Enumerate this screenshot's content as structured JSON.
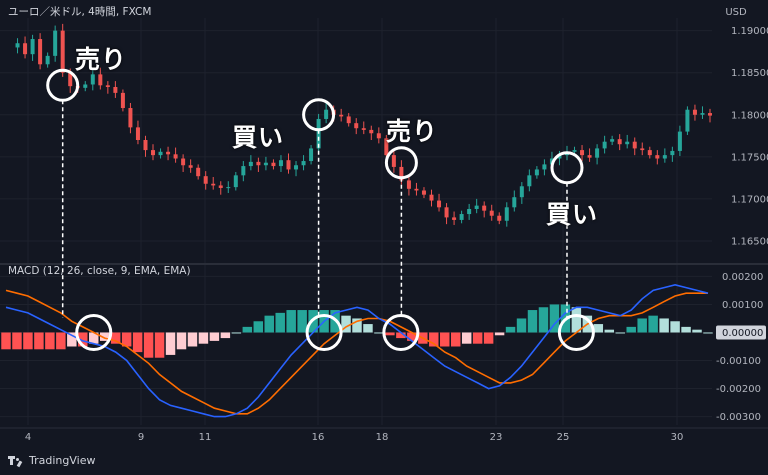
{
  "header": {
    "title": "ユーロ／米ドル, 4時間, FXCM",
    "currency": "USD"
  },
  "branding": {
    "name": "TradingView"
  },
  "annotations": {
    "sell_1": "売り",
    "buy_1": "買い",
    "sell_2": "売り",
    "buy_2": "買い"
  },
  "colors": {
    "background": "#131722",
    "grid": "#1e222d",
    "bullish": "#26a69a",
    "bearish": "#ef5350",
    "hist_pos_strong": "#26a69a",
    "hist_pos_weak": "#b2dfdb",
    "hist_neg_strong": "#ff5252",
    "hist_neg_weak": "#ffcdd2",
    "macd_line": "#2962ff",
    "signal_line": "#ff6d00",
    "annotation": "#ffffff",
    "axis_text": "#b2b5be"
  },
  "chart_data": [
    {
      "type": "candlestick",
      "title": "ユーロ／米ドル, 4時間, FXCM",
      "y_axis_unit": "USD",
      "x_ticks": [
        "4",
        "9",
        "11",
        "16",
        "18",
        "23",
        "25",
        "30"
      ],
      "y_ticks": [
        "1.19000",
        "1.18500",
        "1.18000",
        "1.17500",
        "1.17000",
        "1.16500"
      ],
      "ylim": [
        1.1625,
        1.1915
      ],
      "close_path": [
        1.188,
        1.1885,
        1.1872,
        1.189,
        1.186,
        1.187,
        1.19,
        1.185,
        1.1834,
        1.1832,
        1.1836,
        1.1848,
        1.1835,
        1.1833,
        1.1826,
        1.1808,
        1.1785,
        1.177,
        1.1758,
        1.1752,
        1.1756,
        1.1753,
        1.1748,
        1.174,
        1.1737,
        1.1727,
        1.1718,
        1.1716,
        1.1713,
        1.1714,
        1.1728,
        1.1739,
        1.1744,
        1.174,
        1.1743,
        1.1739,
        1.1746,
        1.1735,
        1.174,
        1.1745,
        1.176,
        1.1795,
        1.1806,
        1.18,
        1.1798,
        1.179,
        1.1784,
        1.1782,
        1.1778,
        1.1772,
        1.1752,
        1.1738,
        1.1722,
        1.1712,
        1.171,
        1.1705,
        1.1698,
        1.169,
        1.1678,
        1.1675,
        1.1682,
        1.1688,
        1.1692,
        1.1686,
        1.168,
        1.1674,
        1.169,
        1.1702,
        1.1715,
        1.1728,
        1.1735,
        1.1741,
        1.1748,
        1.1752,
        1.1756,
        1.1758,
        1.1752,
        1.1749,
        1.176,
        1.1768,
        1.1771,
        1.1765,
        1.1768,
        1.176,
        1.1758,
        1.1752,
        1.1748,
        1.1752,
        1.1757,
        1.178,
        1.1806,
        1.18,
        1.1802,
        1.1799
      ],
      "annotations": [
        {
          "label": "売り",
          "at_index": 7,
          "price": 1.1835
        },
        {
          "label": "買い",
          "at_index": 41,
          "price": 1.18
        },
        {
          "label": "売り",
          "at_index": 52,
          "price": 1.1743
        },
        {
          "label": "買い",
          "at_index": 74,
          "price": 1.1737
        }
      ]
    },
    {
      "type": "line+histogram",
      "title": "MACD (12, 26, close, 9, EMA, EMA)",
      "y_ticks": [
        "0.00200",
        "0.00100",
        "0.00000",
        "-0.00100",
        "-0.00200",
        "-0.00300"
      ],
      "ylim": [
        -0.0033,
        0.0023
      ],
      "current_value_label": "0.00000",
      "series": [
        {
          "name": "MACD",
          "values": [
            0.0009,
            0.0008,
            0.0007,
            0.0005,
            0.0003,
            0.0001,
            -0.0001,
            -0.0003,
            -0.0004,
            -0.0005,
            -0.0007,
            -0.001,
            -0.0015,
            -0.002,
            -0.0024,
            -0.0026,
            -0.0027,
            -0.0028,
            -0.0029,
            -0.003,
            -0.003,
            -0.0029,
            -0.0027,
            -0.0023,
            -0.0018,
            -0.0013,
            -0.0008,
            -0.0004,
            0.0,
            0.0004,
            0.0007,
            0.0008,
            0.0009,
            0.0008,
            0.0005,
            0.0003,
            0.0,
            -0.0003,
            -0.0006,
            -0.0009,
            -0.0012,
            -0.0014,
            -0.0016,
            -0.0018,
            -0.002,
            -0.0019,
            -0.0016,
            -0.0012,
            -0.0007,
            -0.0002,
            0.0003,
            0.0007,
            0.0009,
            0.0009,
            0.0008,
            0.0007,
            0.0006,
            0.0008,
            0.0012,
            0.0015,
            0.0016,
            0.0017,
            0.0016,
            0.0015,
            0.0014
          ]
        },
        {
          "name": "Signal",
          "values": [
            0.0015,
            0.0014,
            0.0013,
            0.0011,
            0.0009,
            0.0007,
            0.0004,
            0.0002,
            0.0,
            -0.0002,
            -0.0003,
            -0.0005,
            -0.0008,
            -0.0011,
            -0.0015,
            -0.0018,
            -0.0021,
            -0.0023,
            -0.0025,
            -0.0027,
            -0.0028,
            -0.0029,
            -0.0029,
            -0.0027,
            -0.0024,
            -0.002,
            -0.0016,
            -0.0012,
            -0.0008,
            -0.0004,
            -0.0001,
            0.0002,
            0.0004,
            0.0005,
            0.0005,
            0.0004,
            0.0002,
            0.0,
            -0.0002,
            -0.0004,
            -0.0007,
            -0.0009,
            -0.0012,
            -0.0014,
            -0.0016,
            -0.0018,
            -0.0018,
            -0.0017,
            -0.0015,
            -0.0011,
            -0.0007,
            -0.0003,
            0.0,
            0.0003,
            0.0005,
            0.0006,
            0.0006,
            0.0006,
            0.0007,
            0.0009,
            0.0011,
            0.0013,
            0.0014,
            0.0014,
            0.0014
          ]
        },
        {
          "name": "Histogram",
          "values": [
            -0.0006,
            -0.0006,
            -0.0006,
            -0.0006,
            -0.0006,
            -0.0006,
            -0.0005,
            -0.0005,
            -0.0004,
            -0.0003,
            -0.0004,
            -0.0005,
            -0.0007,
            -0.0009,
            -0.0009,
            -0.0008,
            -0.0006,
            -0.0005,
            -0.0004,
            -0.0003,
            -0.0002,
            0.0,
            0.0002,
            0.0004,
            0.0006,
            0.0007,
            0.0008,
            0.0008,
            0.0008,
            0.0008,
            0.0008,
            0.0006,
            0.0005,
            0.0003,
            0.0,
            -0.0001,
            -0.0002,
            -0.0003,
            -0.0004,
            -0.0005,
            -0.0005,
            -0.0005,
            -0.0004,
            -0.0004,
            -0.0004,
            -0.0001,
            0.0002,
            0.0005,
            0.0008,
            0.0009,
            0.001,
            0.001,
            0.0009,
            0.0006,
            0.0003,
            0.0001,
            0.0,
            0.0002,
            0.0005,
            0.0006,
            0.0005,
            0.0004,
            0.0002,
            0.0001,
            0.0
          ]
        }
      ],
      "crossovers": [
        {
          "direction": "down",
          "at_index": 8
        },
        {
          "direction": "up",
          "at_index": 29
        },
        {
          "direction": "down",
          "at_index": 36
        },
        {
          "direction": "up",
          "at_index": 52
        }
      ]
    }
  ]
}
